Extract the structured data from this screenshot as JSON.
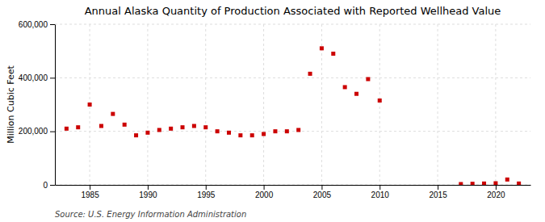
{
  "chart_data": {
    "type": "scatter",
    "title": "Annual Alaska Quantity of Production Associated with Reported Wellhead Value",
    "ylabel": "Million Cubic Feet",
    "source": "Source: U.S. Energy Information Administration",
    "x": [
      1983,
      1984,
      1985,
      1986,
      1987,
      1988,
      1989,
      1990,
      1991,
      1992,
      1993,
      1994,
      1995,
      1996,
      1997,
      1998,
      1999,
      2000,
      2001,
      2002,
      2003,
      2004,
      2005,
      2006,
      2007,
      2008,
      2009,
      2010,
      2017,
      2018,
      2019,
      2020,
      2021,
      2022
    ],
    "values": [
      210000,
      215000,
      300000,
      220000,
      265000,
      225000,
      185000,
      195000,
      205000,
      210000,
      215000,
      220000,
      215000,
      200000,
      195000,
      185000,
      185000,
      190000,
      200000,
      200000,
      205000,
      415000,
      510000,
      490000,
      365000,
      340000,
      395000,
      315000,
      3000,
      4000,
      5000,
      6000,
      20000,
      5000
    ],
    "color": "#cc0000",
    "marker": "square",
    "xlim": [
      1982,
      2023
    ],
    "ylim": [
      0,
      600000
    ],
    "xticks": [
      1985,
      1990,
      1995,
      2000,
      2005,
      2010,
      2015,
      2020
    ],
    "yticks": [
      0,
      {
        "value": 200000,
        "label": "200,000"
      },
      {
        "value": 400000,
        "label": "400,000"
      },
      {
        "value": 600000,
        "label": "600,000"
      }
    ],
    "grid": true
  }
}
